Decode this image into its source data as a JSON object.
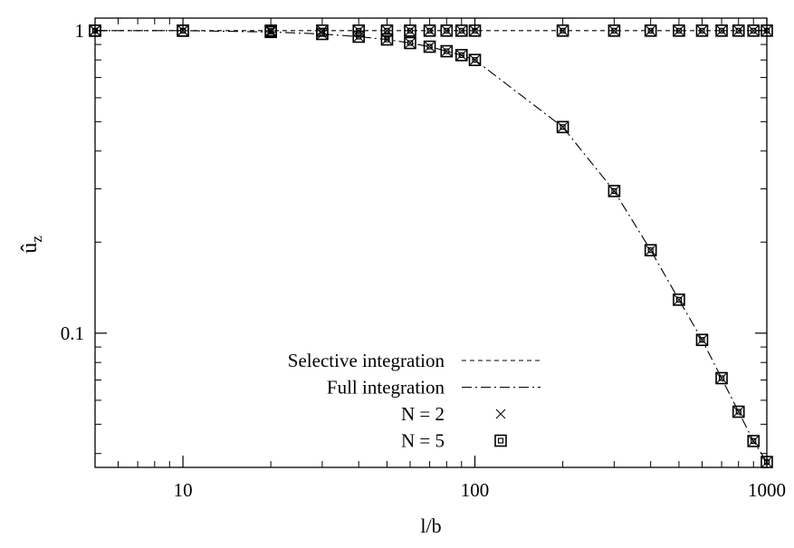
{
  "chart_data": {
    "type": "line",
    "xscale": "log",
    "yscale": "log",
    "xlim": [
      5,
      1000
    ],
    "ylim": [
      0.036,
      1.1
    ],
    "xlabel": "l/b",
    "ylabel": "û",
    "ylabel_sub": "z",
    "x_ticks": [
      {
        "value": 10,
        "label": "10"
      },
      {
        "value": 100,
        "label": "100"
      },
      {
        "value": 1000,
        "label": "1000"
      }
    ],
    "y_ticks": [
      {
        "value": 0.1,
        "label": "0.1"
      },
      {
        "value": 1,
        "label": "1"
      }
    ],
    "x_minor_ticks": [
      6,
      7,
      8,
      9,
      20,
      30,
      40,
      50,
      60,
      70,
      80,
      90,
      200,
      300,
      400,
      500,
      600,
      700,
      800,
      900
    ],
    "y_minor_ticks": [
      0.04,
      0.05,
      0.06,
      0.07,
      0.08,
      0.09,
      0.2,
      0.3,
      0.4,
      0.5,
      0.6,
      0.7,
      0.8,
      0.9
    ],
    "grid": false,
    "legend_position": "bottom-left",
    "legend": [
      {
        "label": "Selective integration",
        "kind": "line",
        "style": "dashed"
      },
      {
        "label": "Full integration",
        "kind": "line",
        "style": "dashdot"
      },
      {
        "label": "N = 2",
        "kind": "marker",
        "marker": "cross"
      },
      {
        "label": "N = 5",
        "kind": "marker",
        "marker": "square"
      }
    ],
    "series": [
      {
        "name": "Selective integration",
        "style": "dashed",
        "x": [
          5,
          10,
          20,
          30,
          40,
          50,
          60,
          70,
          80,
          90,
          100,
          200,
          300,
          400,
          500,
          600,
          700,
          800,
          900,
          1000
        ],
        "y": [
          1,
          1,
          1,
          1,
          1,
          1,
          1,
          1,
          1,
          1,
          1,
          1,
          1,
          1,
          1,
          1,
          1,
          1,
          1,
          1
        ]
      },
      {
        "name": "Full integration",
        "style": "dashdot",
        "x": [
          5,
          10,
          20,
          30,
          40,
          50,
          60,
          70,
          80,
          90,
          100,
          200,
          300,
          400,
          500,
          600,
          700,
          800,
          900,
          1000
        ],
        "y": [
          1,
          1,
          0.99,
          0.975,
          0.955,
          0.935,
          0.91,
          0.885,
          0.855,
          0.83,
          0.8,
          0.48,
          0.295,
          0.188,
          0.129,
          0.095,
          0.071,
          0.055,
          0.044,
          0.0375
        ]
      }
    ],
    "marker_sets": [
      {
        "name": "N = 2",
        "marker": "cross",
        "x": [
          5,
          10,
          20,
          30,
          40,
          50,
          60,
          70,
          80,
          90,
          100,
          200,
          300,
          400,
          500,
          600,
          700,
          800,
          900,
          1000,
          5,
          10,
          20,
          30,
          40,
          50,
          60,
          70,
          80,
          90,
          100,
          200,
          300,
          400,
          500,
          600,
          700,
          800,
          900,
          1000
        ],
        "y": [
          1,
          1,
          1,
          1,
          1,
          1,
          1,
          1,
          1,
          1,
          1,
          1,
          1,
          1,
          1,
          1,
          1,
          1,
          1,
          1,
          1,
          1,
          0.99,
          0.975,
          0.955,
          0.935,
          0.91,
          0.885,
          0.855,
          0.83,
          0.8,
          0.48,
          0.295,
          0.188,
          0.129,
          0.095,
          0.071,
          0.055,
          0.044,
          0.0375
        ]
      },
      {
        "name": "N = 5",
        "marker": "square",
        "x": [
          5,
          10,
          20,
          30,
          40,
          50,
          60,
          70,
          80,
          90,
          100,
          200,
          300,
          400,
          500,
          600,
          700,
          800,
          900,
          1000,
          5,
          10,
          20,
          30,
          40,
          50,
          60,
          70,
          80,
          90,
          100,
          200,
          300,
          400,
          500,
          600,
          700,
          800,
          900,
          1000
        ],
        "y": [
          1,
          1,
          1,
          1,
          1,
          1,
          1,
          1,
          1,
          1,
          1,
          1,
          1,
          1,
          1,
          1,
          1,
          1,
          1,
          1,
          1,
          1,
          0.99,
          0.975,
          0.955,
          0.935,
          0.91,
          0.885,
          0.855,
          0.83,
          0.8,
          0.48,
          0.295,
          0.188,
          0.129,
          0.095,
          0.071,
          0.055,
          0.044,
          0.0375
        ]
      }
    ]
  }
}
